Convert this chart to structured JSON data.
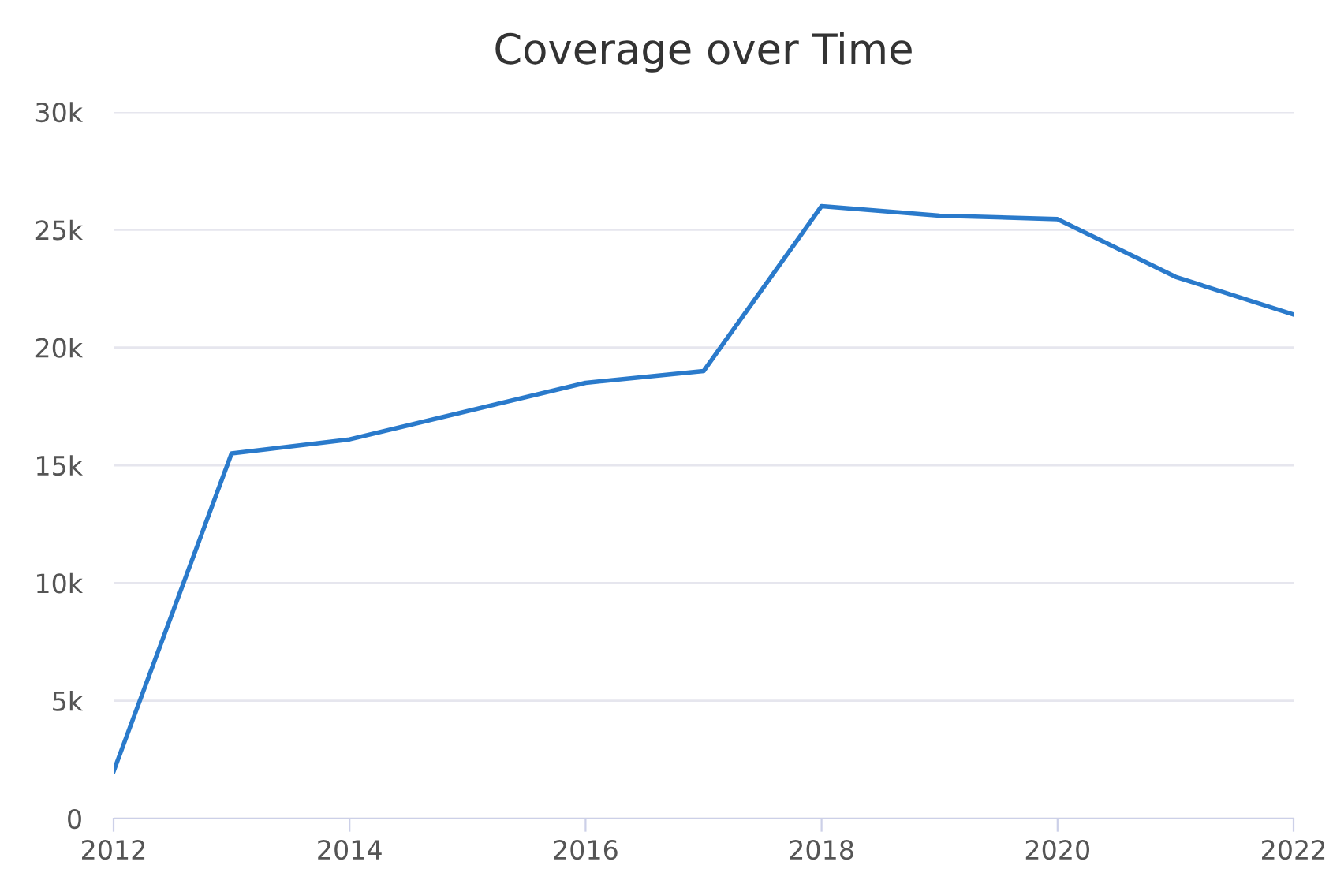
{
  "chart_data": {
    "type": "line",
    "title": "Coverage over Time",
    "x": [
      2012,
      2013,
      2014,
      2016,
      2017,
      2018,
      2019,
      2020,
      2021,
      2022
    ],
    "series": [
      {
        "color": "#2a7acb",
        "values": [
          2000,
          15500,
          16100,
          18500,
          19000,
          26000,
          25600,
          25450,
          23000,
          21400
        ]
      }
    ],
    "xlim": [
      2012,
      2022
    ],
    "xticks": [
      2012,
      2014,
      2016,
      2018,
      2020,
      2022
    ],
    "ylim": [
      0,
      30000
    ],
    "yticks": [
      0,
      {
        "value": 5000,
        "label": "5k"
      },
      {
        "value": 10000,
        "label": "10k"
      },
      {
        "value": 15000,
        "label": "15k"
      },
      {
        "value": 20000,
        "label": "20k"
      },
      {
        "value": 25000,
        "label": "25k"
      },
      {
        "value": 30000,
        "label": "30k"
      }
    ],
    "grid": "y",
    "marker": "none",
    "line_style": "solid"
  }
}
